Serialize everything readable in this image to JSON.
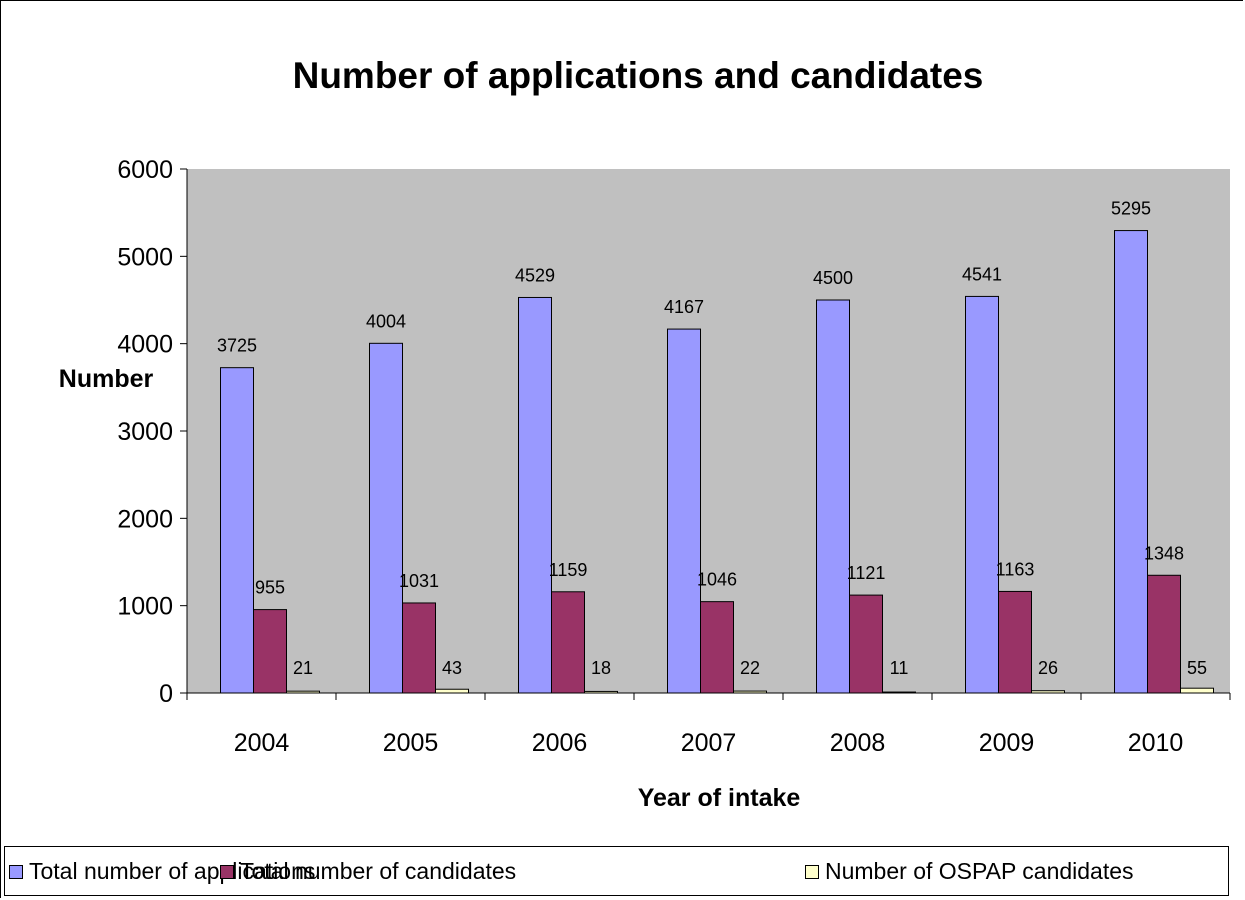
{
  "chart_data": {
    "type": "bar",
    "title": "Number of applications and candidates",
    "xlabel": "Year of intake",
    "ylabel": "Number",
    "ylim": [
      0,
      6000
    ],
    "yticks": [
      0,
      1000,
      2000,
      3000,
      4000,
      5000,
      6000
    ],
    "categories": [
      "2004",
      "2005",
      "2006",
      "2007",
      "2008",
      "2009",
      "2010"
    ],
    "series": [
      {
        "name": "Total number of applications",
        "color": "#9999ff",
        "values": [
          3725,
          4004,
          4529,
          4167,
          4500,
          4541,
          5295
        ]
      },
      {
        "name": "Total number of candidates",
        "color": "#993366",
        "values": [
          955,
          1031,
          1159,
          1046,
          1121,
          1163,
          1348
        ]
      },
      {
        "name": "Number of OSPAP candidates",
        "color": "#ffffcc",
        "values": [
          21,
          43,
          18,
          22,
          11,
          26,
          55
        ]
      }
    ],
    "plot_background": "#c0c0c0",
    "grid": false,
    "legend_position": "bottom"
  }
}
